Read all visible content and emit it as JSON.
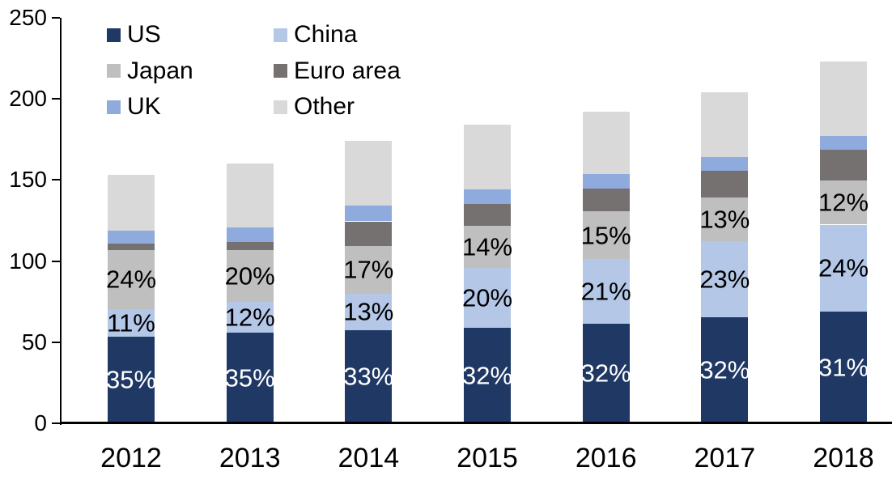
{
  "chart_data": {
    "type": "bar",
    "subtype": "stacked",
    "title": "",
    "xlabel": "",
    "ylabel": "",
    "categories": [
      "2012",
      "2013",
      "2014",
      "2015",
      "2016",
      "2017",
      "2018"
    ],
    "series": [
      {
        "name": "US",
        "color": "#1F3864",
        "values": [
          53.5,
          56,
          57.5,
          59,
          61.5,
          65.5,
          69
        ],
        "labels": [
          "35%",
          "35%",
          "33%",
          "32%",
          "32%",
          "32%",
          "31%"
        ],
        "label_color": "#FFFFFF"
      },
      {
        "name": "China",
        "color": "#B4C7E7",
        "values": [
          17,
          19,
          22.5,
          37,
          40,
          47,
          53.5
        ],
        "labels": [
          "11%",
          "12%",
          "13%",
          "20%",
          "21%",
          "23%",
          "24%"
        ],
        "label_color": "#000000"
      },
      {
        "name": "Japan",
        "color": "#BFBFBF",
        "values": [
          36.5,
          32,
          29.5,
          26,
          29,
          26.5,
          27
        ],
        "labels": [
          "24%",
          "20%",
          "17%",
          "14%",
          "15%",
          "13%",
          "12%"
        ],
        "label_color": "#000000"
      },
      {
        "name": "Euro area",
        "color": "#767171",
        "values": [
          4,
          5,
          15,
          13,
          14,
          16.5,
          19
        ],
        "labels": null,
        "label_color": null
      },
      {
        "name": "UK",
        "color": "#8FAADC",
        "values": [
          8,
          9,
          9.5,
          9,
          9,
          8.5,
          8.5
        ],
        "labels": null,
        "label_color": null
      },
      {
        "name": "Other",
        "color": "#D9D9D9",
        "values": [
          34,
          39,
          40,
          40,
          38.5,
          40,
          46
        ],
        "labels": null,
        "label_color": null
      }
    ],
    "totals": [
      153,
      160,
      174,
      184,
      192,
      204,
      223
    ],
    "ylim": [
      0,
      250
    ],
    "yticks": [
      0,
      50,
      100,
      150,
      200,
      250
    ],
    "grid": false,
    "legend_position": "top-left",
    "legend_order": [
      "US",
      "China",
      "Japan",
      "Euro area",
      "UK",
      "Other"
    ],
    "axis_color": "#000000",
    "background_color": "#FFFFFF"
  }
}
